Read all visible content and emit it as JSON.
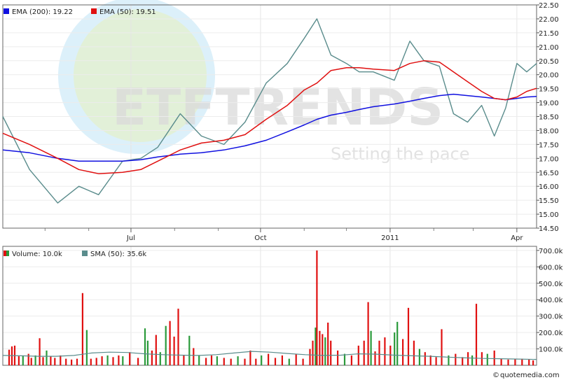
{
  "chart_data": [
    {
      "type": "line",
      "panel": "price",
      "x_tick_labels": [
        "Jul",
        "Oct",
        "2011",
        "Apr"
      ],
      "x": [
        "2010-04-01",
        "2010-04-20",
        "2010-05-10",
        "2010-05-25",
        "2010-06-08",
        "2010-06-25",
        "2010-07-08",
        "2010-07-20",
        "2010-08-05",
        "2010-08-20",
        "2010-09-05",
        "2010-09-20",
        "2010-10-05",
        "2010-10-20",
        "2010-11-01",
        "2010-11-10",
        "2010-11-20",
        "2010-12-01",
        "2010-12-10",
        "2010-12-20",
        "2011-01-04",
        "2011-01-15",
        "2011-01-25",
        "2011-02-05",
        "2011-02-15",
        "2011-02-25",
        "2011-03-07",
        "2011-03-16",
        "2011-03-24",
        "2011-04-01",
        "2011-04-08",
        "2011-04-15"
      ],
      "y_ticks": [
        22.5,
        22.0,
        21.5,
        21.0,
        20.5,
        20.0,
        19.5,
        19.0,
        18.5,
        18.0,
        17.5,
        17.0,
        16.5,
        16.0,
        15.5,
        15.0,
        14.5
      ],
      "ylim": [
        14.5,
        22.5
      ],
      "grid": true,
      "legend_position": "top-left",
      "series": [
        {
          "name": "EMA (200): 19.22",
          "color": "#1010e0",
          "values": [
            17.3,
            17.2,
            17.0,
            16.9,
            16.9,
            16.9,
            16.95,
            17.05,
            17.15,
            17.2,
            17.3,
            17.45,
            17.65,
            17.95,
            18.2,
            18.4,
            18.55,
            18.65,
            18.75,
            18.85,
            18.95,
            19.05,
            19.15,
            19.25,
            19.3,
            19.25,
            19.2,
            19.15,
            19.1,
            19.15,
            19.2,
            19.22
          ]
        },
        {
          "name": "EMA (50): 19.51",
          "color": "#e01010",
          "values": [
            17.9,
            17.5,
            17.0,
            16.6,
            16.45,
            16.5,
            16.6,
            16.9,
            17.3,
            17.55,
            17.65,
            17.85,
            18.4,
            18.9,
            19.45,
            19.7,
            20.15,
            20.25,
            20.25,
            20.2,
            20.15,
            20.4,
            20.5,
            20.45,
            20.1,
            19.75,
            19.4,
            19.15,
            19.1,
            19.2,
            19.4,
            19.51
          ]
        },
        {
          "name": "Price",
          "color": "#5a8c8c",
          "values": [
            18.5,
            16.6,
            15.4,
            16.0,
            15.7,
            16.9,
            17.0,
            17.4,
            18.6,
            17.8,
            17.5,
            18.3,
            19.7,
            20.4,
            21.3,
            22.0,
            20.7,
            20.4,
            20.1,
            20.1,
            19.8,
            21.2,
            20.5,
            20.3,
            18.6,
            18.3,
            18.9,
            17.8,
            18.8,
            20.4,
            20.1,
            20.4
          ]
        }
      ]
    },
    {
      "type": "bar",
      "panel": "volume",
      "y_ticks": [
        "700.0k",
        "600.0k",
        "500.0k",
        "400.0k",
        "300.0k",
        "200.0k",
        "100.0k"
      ],
      "ylim": [
        0,
        725
      ],
      "grid": true,
      "legend_position": "top-left",
      "legend": [
        {
          "name": "Volume: 10.0k",
          "color_up": "#2a9a3a",
          "color_down": "#e01010"
        },
        {
          "name": "SMA (50): 35.6k",
          "color": "#5a8c8c"
        }
      ],
      "bars": [
        [
          6,
          95,
          1
        ],
        [
          10,
          115,
          1
        ],
        [
          14,
          120,
          1
        ],
        [
          20,
          55,
          1
        ],
        [
          26,
          60,
          0
        ],
        [
          34,
          70,
          1
        ],
        [
          38,
          45,
          1
        ],
        [
          44,
          60,
          0
        ],
        [
          50,
          165,
          1
        ],
        [
          55,
          50,
          1
        ],
        [
          60,
          90,
          0
        ],
        [
          66,
          55,
          1
        ],
        [
          72,
          45,
          1
        ],
        [
          80,
          60,
          1
        ],
        [
          88,
          40,
          1
        ],
        [
          96,
          35,
          1
        ],
        [
          104,
          40,
          1
        ],
        [
          112,
          440,
          1
        ],
        [
          118,
          215,
          0
        ],
        [
          124,
          40,
          1
        ],
        [
          132,
          45,
          1
        ],
        [
          140,
          55,
          1
        ],
        [
          148,
          60,
          0
        ],
        [
          156,
          50,
          1
        ],
        [
          164,
          60,
          1
        ],
        [
          170,
          55,
          0
        ],
        [
          180,
          80,
          1
        ],
        [
          192,
          45,
          1
        ],
        [
          202,
          225,
          0
        ],
        [
          206,
          150,
          0
        ],
        [
          212,
          90,
          1
        ],
        [
          218,
          185,
          1
        ],
        [
          224,
          80,
          0
        ],
        [
          232,
          240,
          0
        ],
        [
          238,
          270,
          1
        ],
        [
          244,
          175,
          1
        ],
        [
          250,
          345,
          1
        ],
        [
          258,
          60,
          1
        ],
        [
          266,
          180,
          0
        ],
        [
          272,
          105,
          1
        ],
        [
          280,
          60,
          0
        ],
        [
          290,
          45,
          1
        ],
        [
          298,
          60,
          1
        ],
        [
          306,
          55,
          0
        ],
        [
          316,
          45,
          1
        ],
        [
          326,
          40,
          1
        ],
        [
          336,
          55,
          0
        ],
        [
          346,
          40,
          1
        ],
        [
          354,
          90,
          1
        ],
        [
          362,
          40,
          1
        ],
        [
          370,
          60,
          0
        ],
        [
          380,
          70,
          1
        ],
        [
          390,
          45,
          1
        ],
        [
          400,
          60,
          1
        ],
        [
          410,
          40,
          0
        ],
        [
          420,
          70,
          1
        ],
        [
          430,
          40,
          1
        ],
        [
          440,
          100,
          1
        ],
        [
          444,
          150,
          1
        ],
        [
          448,
          230,
          0
        ],
        [
          450,
          700,
          1
        ],
        [
          454,
          210,
          1
        ],
        [
          458,
          190,
          1
        ],
        [
          462,
          170,
          0
        ],
        [
          466,
          260,
          1
        ],
        [
          470,
          150,
          1
        ],
        [
          480,
          90,
          1
        ],
        [
          490,
          70,
          0
        ],
        [
          500,
          60,
          1
        ],
        [
          510,
          120,
          1
        ],
        [
          518,
          150,
          1
        ],
        [
          524,
          385,
          1
        ],
        [
          528,
          210,
          0
        ],
        [
          534,
          85,
          1
        ],
        [
          540,
          150,
          1
        ],
        [
          548,
          170,
          1
        ],
        [
          556,
          120,
          1
        ],
        [
          562,
          200,
          0
        ],
        [
          566,
          265,
          0
        ],
        [
          574,
          160,
          1
        ],
        [
          582,
          350,
          1
        ],
        [
          590,
          150,
          1
        ],
        [
          598,
          100,
          0
        ],
        [
          606,
          80,
          1
        ],
        [
          614,
          60,
          1
        ],
        [
          622,
          50,
          1
        ],
        [
          630,
          220,
          1
        ],
        [
          640,
          60,
          0
        ],
        [
          650,
          70,
          1
        ],
        [
          660,
          50,
          1
        ],
        [
          668,
          80,
          1
        ],
        [
          674,
          60,
          0
        ],
        [
          680,
          375,
          1
        ],
        [
          688,
          80,
          1
        ],
        [
          696,
          70,
          0
        ],
        [
          706,
          90,
          1
        ],
        [
          716,
          40,
          1
        ],
        [
          726,
          35,
          1
        ],
        [
          736,
          40,
          1
        ],
        [
          746,
          40,
          1
        ],
        [
          756,
          35,
          1
        ],
        [
          762,
          30,
          1
        ]
      ],
      "sma_values": [
        60,
        58,
        55,
        55,
        60,
        75,
        80,
        78,
        70,
        65,
        62,
        60,
        65,
        75,
        85,
        80,
        72,
        65,
        60,
        62,
        70,
        68,
        62,
        58,
        55,
        50,
        45,
        42,
        40,
        38,
        36
      ]
    }
  ],
  "watermark": {
    "text": "ETFTRENDS",
    "tagline": "Setting the pace"
  },
  "footer": {
    "brand": "quotemedia.com"
  }
}
